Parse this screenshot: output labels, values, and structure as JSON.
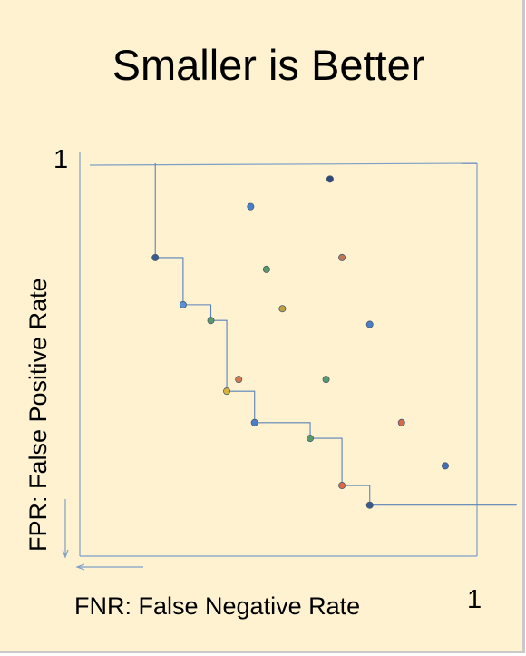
{
  "slide": {
    "title": "Smaller is Better",
    "background": "#fef2d0"
  },
  "chart_data": {
    "type": "scatter",
    "title": "Smaller is Better",
    "xlabel": "FNR: False Negative Rate",
    "ylabel": "FPR: False Positive Rate",
    "x_tick_labels": [
      "1"
    ],
    "y_tick_labels": [
      "1"
    ],
    "xlim": [
      0,
      1
    ],
    "ylim": [
      0,
      1
    ],
    "grid": false,
    "axis_color": "#7f9fc6",
    "frontier_color": "#5b82b8",
    "pareto_frontier": [
      {
        "x": 0.19,
        "y": 0.76,
        "color": "#3a5a8c"
      },
      {
        "x": 0.26,
        "y": 0.64,
        "color": "#5b8fd6"
      },
      {
        "x": 0.33,
        "y": 0.6,
        "color": "#5a9a66"
      },
      {
        "x": 0.37,
        "y": 0.42,
        "color": "#d9b23a"
      },
      {
        "x": 0.44,
        "y": 0.34,
        "color": "#4a7ec8"
      },
      {
        "x": 0.58,
        "y": 0.3,
        "color": "#5a9a66"
      },
      {
        "x": 0.66,
        "y": 0.18,
        "color": "#d86a4a"
      },
      {
        "x": 0.73,
        "y": 0.13,
        "color": "#3a5a8c"
      }
    ],
    "other_points": [
      {
        "x": 0.43,
        "y": 0.89,
        "color": "#4a7ec8"
      },
      {
        "x": 0.63,
        "y": 0.96,
        "color": "#2e4a78"
      },
      {
        "x": 0.47,
        "y": 0.73,
        "color": "#5a9a66"
      },
      {
        "x": 0.66,
        "y": 0.76,
        "color": "#c07850"
      },
      {
        "x": 0.51,
        "y": 0.63,
        "color": "#c0a040"
      },
      {
        "x": 0.73,
        "y": 0.59,
        "color": "#4a7ec8"
      },
      {
        "x": 0.4,
        "y": 0.45,
        "color": "#d47a50"
      },
      {
        "x": 0.62,
        "y": 0.45,
        "color": "#5a9a66"
      },
      {
        "x": 0.81,
        "y": 0.34,
        "color": "#d86a4a"
      },
      {
        "x": 0.92,
        "y": 0.23,
        "color": "#3f6fb8"
      }
    ]
  }
}
